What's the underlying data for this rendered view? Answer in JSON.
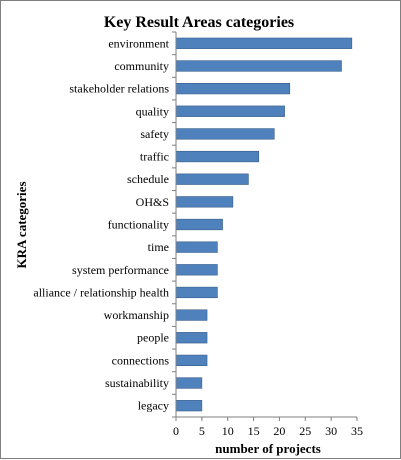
{
  "chart_data": {
    "type": "bar",
    "orientation": "horizontal",
    "title": "Key Result Areas categories",
    "xlabel": "number of projects",
    "ylabel": "KRA categories",
    "categories": [
      "environment",
      "community",
      "stakeholder relations",
      "quality",
      "safety",
      "traffic",
      "schedule",
      "OH&S",
      "functionality",
      "time",
      "system performance",
      "alliance / relationship health",
      "workmanship",
      "people",
      "connections",
      "sustainability",
      "legacy"
    ],
    "values": [
      34,
      32,
      22,
      21,
      19,
      16,
      14,
      11,
      9,
      8,
      8,
      8,
      6,
      6,
      6,
      5,
      5
    ],
    "xlim": [
      0,
      35
    ],
    "xticks": [
      0,
      5,
      10,
      15,
      20,
      25,
      30,
      35
    ],
    "grid": false,
    "legend": "none",
    "colors": {
      "bar_fill": "#4f81bd",
      "bar_edge": "#385d8a",
      "axis": "#7f7f7f"
    }
  }
}
